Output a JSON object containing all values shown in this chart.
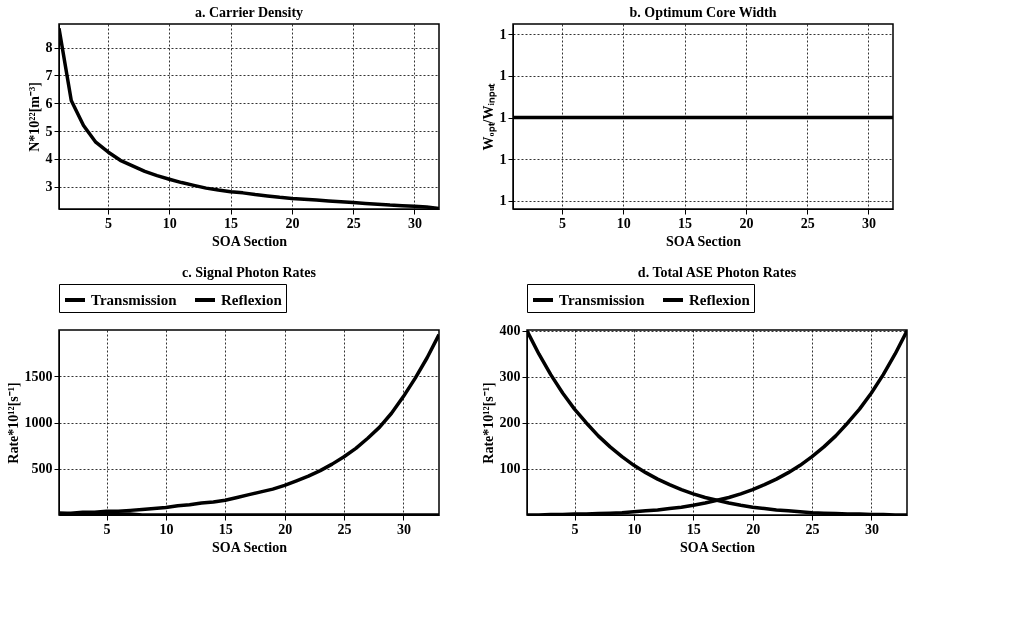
{
  "chart_data": [
    {
      "type": "line",
      "title": "a. Carrier Density",
      "xlabel": "SOA Section",
      "ylabel": "N*10²²[m⁻³]",
      "x": [
        1,
        2,
        3,
        4,
        5,
        6,
        7,
        8,
        9,
        10,
        11,
        12,
        13,
        14,
        15,
        16,
        17,
        18,
        19,
        20,
        21,
        22,
        23,
        24,
        25,
        26,
        27,
        28,
        29,
        30,
        31,
        32
      ],
      "values": [
        8.7,
        6.1,
        5.2,
        4.6,
        4.25,
        3.95,
        3.75,
        3.55,
        3.4,
        3.27,
        3.15,
        3.05,
        2.95,
        2.88,
        2.82,
        2.78,
        2.72,
        2.67,
        2.62,
        2.58,
        2.55,
        2.52,
        2.49,
        2.46,
        2.43,
        2.4,
        2.37,
        2.34,
        2.32,
        2.3,
        2.27,
        2.22
      ],
      "color": "#000000",
      "xlim": [
        1,
        32
      ],
      "ylim": [
        2.2,
        8.85
      ],
      "xticks": [
        5,
        10,
        15,
        20,
        25,
        30
      ],
      "yticks": [
        3,
        4,
        5,
        6,
        7,
        8
      ],
      "grid": true
    },
    {
      "type": "line",
      "title": "b. Optimum Core Width",
      "xlabel": "SOA Section",
      "ylabel": "Wₒₚₜ/Wᵢₙₚᵤₜ",
      "x": [
        1,
        2,
        3,
        4,
        5,
        6,
        7,
        8,
        9,
        10,
        11,
        12,
        13,
        14,
        15,
        16,
        17,
        18,
        19,
        20,
        21,
        22,
        23,
        24,
        25,
        26,
        27,
        28,
        29,
        30,
        31,
        32
      ],
      "values": [
        1,
        1,
        1,
        1,
        1,
        1,
        1,
        1,
        1,
        1,
        1,
        1,
        1,
        1,
        1,
        1,
        1,
        1,
        1,
        1,
        1,
        1,
        1,
        1,
        1,
        1,
        1,
        1,
        1,
        1,
        1,
        1
      ],
      "color": "#000000",
      "xlim": [
        1,
        32
      ],
      "ylim": [
        0.978,
        1.0225
      ],
      "xticks": [
        5,
        10,
        15,
        20,
        25,
        30
      ],
      "yticks": [
        {
          "value": 0.98,
          "label": "1"
        },
        {
          "value": 0.99,
          "label": "1"
        },
        {
          "value": 1,
          "label": "1"
        },
        {
          "value": 1.01,
          "label": "1"
        },
        {
          "value": 1.02,
          "label": "1"
        }
      ],
      "grid": true
    },
    {
      "type": "line",
      "title": "c. Signal Photon Rates",
      "xlabel": "SOA Section",
      "ylabel": "Rate*10¹²[s⁻¹]",
      "x": [
        1,
        2,
        3,
        4,
        5,
        6,
        7,
        8,
        9,
        10,
        11,
        12,
        13,
        14,
        15,
        16,
        17,
        18,
        19,
        20,
        21,
        22,
        23,
        24,
        25,
        26,
        27,
        28,
        29,
        30,
        31,
        32,
        33
      ],
      "series": [
        {
          "name": "Transmission",
          "color": "#000000",
          "values": [
            20,
            20,
            30,
            30,
            40,
            40,
            50,
            60,
            70,
            80,
            100,
            110,
            130,
            140,
            160,
            190,
            220,
            250,
            280,
            320,
            370,
            420,
            480,
            550,
            630,
            720,
            830,
            950,
            1100,
            1280,
            1480,
            1700,
            1950
          ]
        },
        {
          "name": "Reflexion",
          "color": "#000000",
          "values": [
            20,
            10,
            10,
            10,
            10,
            10,
            10,
            0,
            0,
            0,
            0,
            0,
            0,
            0,
            0,
            0,
            0,
            0,
            0,
            0,
            0,
            0,
            0,
            0,
            0,
            0,
            0,
            0,
            0,
            0,
            0,
            0,
            0
          ]
        }
      ],
      "xlim": [
        1,
        33
      ],
      "ylim": [
        0,
        2000
      ],
      "xticks": [
        5,
        10,
        15,
        20,
        25,
        30
      ],
      "yticks": [
        500,
        1000,
        1500
      ],
      "grid": true,
      "legend": "top"
    },
    {
      "type": "line",
      "title": "d. Total ASE Photon Rates",
      "xlabel": "SOA Section",
      "ylabel": "Rate*10¹²[s⁻¹]",
      "x": [
        1,
        2,
        3,
        4,
        5,
        6,
        7,
        8,
        9,
        10,
        11,
        12,
        13,
        14,
        15,
        16,
        17,
        18,
        19,
        20,
        21,
        22,
        23,
        24,
        25,
        26,
        27,
        28,
        29,
        30,
        31,
        32,
        33
      ],
      "series": [
        {
          "name": "Transmission",
          "color": "#000000",
          "values": [
            0,
            0,
            1,
            1,
            2,
            2,
            3,
            4,
            5,
            7,
            9,
            11,
            14,
            17,
            21,
            26,
            32,
            38,
            46,
            55,
            66,
            78,
            92,
            108,
            127,
            148,
            172,
            200,
            230,
            265,
            305,
            350,
            400
          ]
        },
        {
          "name": "Reflexion",
          "color": "#000000",
          "values": [
            400,
            350,
            305,
            265,
            230,
            200,
            172,
            148,
            127,
            108,
            92,
            78,
            66,
            55,
            46,
            38,
            32,
            26,
            21,
            17,
            14,
            11,
            9,
            7,
            5,
            4,
            3,
            2,
            2,
            1,
            1,
            0,
            0
          ]
        }
      ],
      "xlim": [
        1,
        33
      ],
      "ylim": [
        0,
        402
      ],
      "xticks": [
        5,
        10,
        15,
        20,
        25,
        30
      ],
      "yticks": [
        100,
        200,
        300,
        400
      ],
      "grid": true,
      "legend": "top"
    }
  ]
}
